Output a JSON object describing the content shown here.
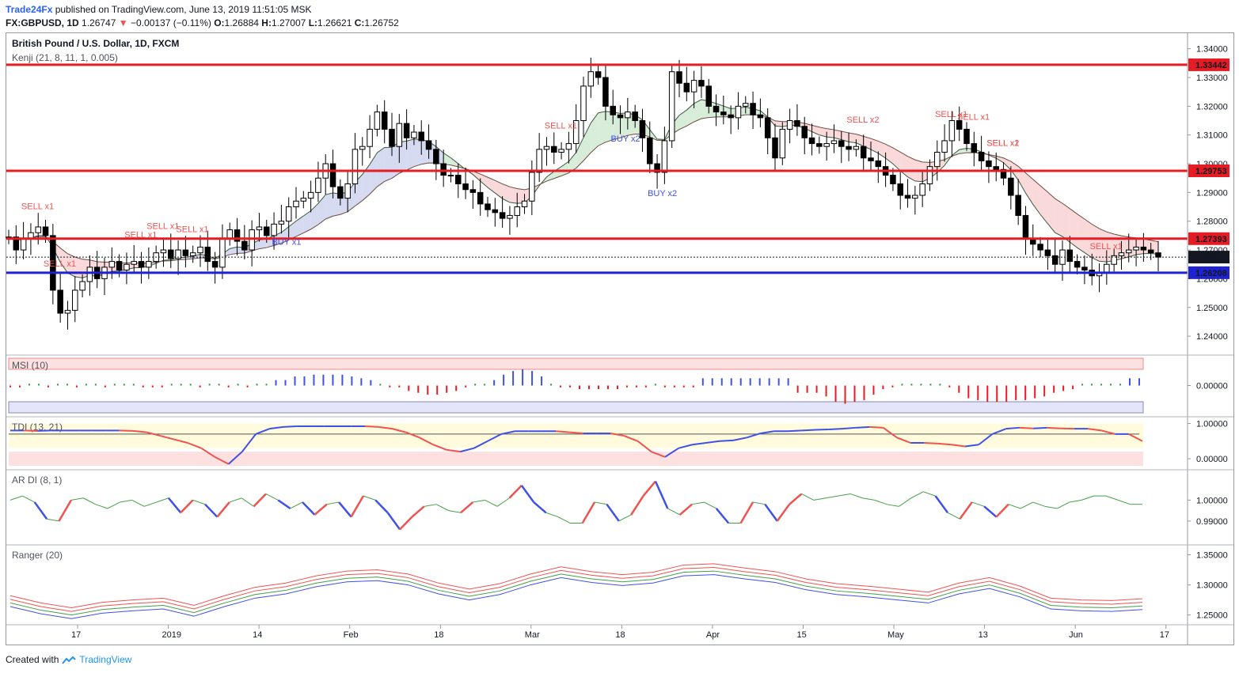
{
  "header": {
    "publisher": "Trade24Fx",
    "published_text": " published on TradingView.com, June 13, 2019 11:51:05 MSK"
  },
  "quote": {
    "symbol": "FX:GBPUSD, 1D",
    "last": "1.26747",
    "arrow": "▼",
    "change": "−0.00137 (−0.11%)",
    "o_label": "O:",
    "o": "1.26884",
    "h_label": "H:",
    "h": "1.27007",
    "l_label": "L:",
    "l": "1.26621",
    "c_label": "C:",
    "c": "1.26752"
  },
  "footer": {
    "created_with": "Created with",
    "brand": "TradingView"
  },
  "colors": {
    "up": "#ffffff",
    "down": "#000000",
    "red_line": "#e51c23",
    "blue_line": "#1e22d0",
    "sell": "#ef5350",
    "buy": "#3f51e8",
    "kenji_pos": "#c8e6c9",
    "kenji_neg": "#f7c9cb"
  },
  "chart_data": [
    {
      "type": "candlestick",
      "title": "British Pound / U.S. Dollar, 1D, FXCM",
      "indicator": "Kenji (21, 8, 11, 1, 0.005)",
      "ylim": [
        1.2337,
        1.3454
      ],
      "y_ticks": [
        "1.34000",
        "1.33000",
        "1.32000",
        "1.31000",
        "1.30000",
        "1.29000",
        "1.28000",
        "1.27000",
        "1.26000",
        "1.25000",
        "1.24000"
      ],
      "x_ticks": [
        "17",
        "2019",
        "14",
        "Feb",
        "18",
        "Mar",
        "18",
        "Apr",
        "15",
        "May",
        "13",
        "Jun",
        "17"
      ],
      "horizontal_levels": [
        {
          "value": 1.33442,
          "label": "1.33442",
          "color": "#e51c23"
        },
        {
          "value": 1.29753,
          "label": "1.29753",
          "color": "#e51c23"
        },
        {
          "value": 1.27393,
          "label": "1.27393",
          "color": "#e51c23"
        },
        {
          "value": 1.26208,
          "label": "1.26208",
          "color": "#1e22d0"
        }
      ],
      "last_price": {
        "value": 1.26752,
        "label": "1.26752"
      },
      "signals": [
        {
          "text": "SELL x1",
          "kind": "sell"
        },
        {
          "text": "SELL x1",
          "kind": "sell"
        },
        {
          "text": "SELL x1",
          "kind": "sell"
        },
        {
          "text": "SELL x1",
          "kind": "sell"
        },
        {
          "text": "SELL x1",
          "kind": "sell"
        },
        {
          "text": "BUY x1",
          "kind": "buy"
        },
        {
          "text": "SELL x1",
          "kind": "sell"
        },
        {
          "text": "BUY x2",
          "kind": "buy"
        },
        {
          "text": "BUY x2",
          "kind": "buy"
        },
        {
          "text": "SELL x2",
          "kind": "sell"
        },
        {
          "text": "SELL x1",
          "kind": "sell"
        },
        {
          "text": "SELL x1",
          "kind": "sell"
        },
        {
          "text": "SELL x2",
          "kind": "sell"
        },
        {
          "text": "SELL x1",
          "kind": "sell"
        },
        {
          "text": "SELL x1",
          "kind": "sell"
        }
      ],
      "close_series": [
        1.2745,
        1.27,
        1.274,
        1.276,
        1.278,
        1.275,
        1.256,
        1.248,
        1.249,
        1.256,
        1.259,
        1.264,
        1.26,
        1.264,
        1.266,
        1.263,
        1.265,
        1.266,
        1.264,
        1.266,
        1.269,
        1.27,
        1.267,
        1.27,
        1.268,
        1.269,
        1.271,
        1.266,
        1.264,
        1.274,
        1.277,
        1.273,
        1.27,
        1.277,
        1.278,
        1.275,
        1.279,
        1.28,
        1.285,
        1.287,
        1.288,
        1.29,
        1.295,
        1.3,
        1.292,
        1.288,
        1.293,
        1.305,
        1.306,
        1.312,
        1.318,
        1.312,
        1.306,
        1.314,
        1.309,
        1.311,
        1.308,
        1.305,
        1.3,
        1.296,
        1.296,
        1.293,
        1.291,
        1.29,
        1.286,
        1.284,
        1.283,
        1.281,
        1.282,
        1.285,
        1.287,
        1.297,
        1.305,
        1.306,
        1.304,
        1.305,
        1.307,
        1.315,
        1.327,
        1.332,
        1.33,
        1.32,
        1.317,
        1.316,
        1.318,
        1.315,
        1.309,
        1.3,
        1.297,
        1.308,
        1.332,
        1.328,
        1.325,
        1.329,
        1.327,
        1.32,
        1.318,
        1.317,
        1.316,
        1.32,
        1.321,
        1.317,
        1.316,
        1.309,
        1.302,
        1.312,
        1.315,
        1.313,
        1.309,
        1.307,
        1.306,
        1.307,
        1.308,
        1.306,
        1.305,
        1.306,
        1.302,
        1.301,
        1.299,
        1.296,
        1.293,
        1.289,
        1.288,
        1.289,
        1.293,
        1.299,
        1.304,
        1.308,
        1.315,
        1.312,
        1.307,
        1.304,
        1.301,
        1.299,
        1.298,
        1.295,
        1.289,
        1.282,
        1.274,
        1.272,
        1.27,
        1.268,
        1.265,
        1.27,
        1.266,
        1.264,
        1.263,
        1.261,
        1.262,
        1.265,
        1.268,
        1.269,
        1.27,
        1.271,
        1.27,
        1.269,
        1.2675
      ]
    },
    {
      "type": "bar",
      "title": "MSI (10)",
      "ylim": [
        -1.5,
        1.5
      ],
      "y_ticks": [
        "0.00000"
      ],
      "values": [
        -0.1,
        -0.1,
        0.1,
        0.1,
        -0.1,
        0.1,
        0.1,
        -0.1,
        0.1,
        0.1,
        -0.1,
        0.1,
        0.1,
        0.1,
        -0.1,
        -0.1,
        -0.1,
        0.1,
        0.1,
        0.1,
        -0.1,
        0.1,
        0.1,
        -0.1,
        0.1,
        -0.1,
        0.1,
        0.1,
        0.3,
        0.3,
        0.5,
        0.5,
        0.6,
        0.6,
        0.6,
        0.6,
        0.5,
        0.4,
        0.3,
        0.1,
        -0.1,
        -0.1,
        -0.3,
        -0.4,
        -0.5,
        -0.5,
        -0.4,
        -0.3,
        -0.1,
        0.1,
        0.1,
        0.3,
        0.6,
        0.8,
        0.9,
        0.8,
        0.5,
        0.1,
        -0.1,
        -0.1,
        -0.2,
        -0.2,
        -0.2,
        -0.2,
        -0.2,
        -0.1,
        -0.1,
        -0.1,
        0.1,
        -0.1,
        -0.1,
        -0.1,
        -0.1,
        0.4,
        0.4,
        0.4,
        0.4,
        0.4,
        0.4,
        0.4,
        0.4,
        0.4,
        0.4,
        -0.4,
        -0.4,
        -0.4,
        -0.6,
        -0.9,
        -1.0,
        -0.9,
        -0.8,
        -0.5,
        -0.2,
        -0.1,
        0.1,
        0.1,
        0.1,
        0.1,
        0.1,
        -0.1,
        -0.4,
        -0.7,
        -0.8,
        -0.9,
        -0.9,
        -0.9,
        -0.8,
        -0.8,
        -0.7,
        -0.6,
        -0.4,
        -0.3,
        -0.2,
        0.1,
        0.1,
        0.1,
        0.1,
        0.1,
        0.4,
        0.4
      ]
    },
    {
      "type": "line",
      "title": "TDI (13, 21)",
      "ylim": [
        -0.2,
        1.1
      ],
      "y_ticks": [
        "1.00000",
        "0.00000"
      ],
      "values": [
        0.8,
        0.8,
        0.79,
        0.8,
        0.8,
        0.8,
        0.8,
        0.8,
        0.8,
        0.79,
        0.75,
        0.65,
        0.55,
        0.45,
        0.3,
        0.05,
        -0.15,
        0.2,
        0.7,
        0.85,
        0.9,
        0.92,
        0.92,
        0.92,
        0.92,
        0.92,
        0.92,
        0.9,
        0.85,
        0.75,
        0.6,
        0.4,
        0.25,
        0.2,
        0.3,
        0.5,
        0.7,
        0.78,
        0.78,
        0.78,
        0.78,
        0.75,
        0.72,
        0.72,
        0.72,
        0.65,
        0.5,
        0.2,
        0.05,
        0.3,
        0.4,
        0.45,
        0.5,
        0.52,
        0.6,
        0.72,
        0.78,
        0.78,
        0.8,
        0.82,
        0.83,
        0.85,
        0.88,
        0.9,
        0.88,
        0.6,
        0.45,
        0.45,
        0.43,
        0.4,
        0.35,
        0.4,
        0.7,
        0.85,
        0.88,
        0.86,
        0.88,
        0.86,
        0.85,
        0.85,
        0.8,
        0.7,
        0.7,
        0.5
      ]
    },
    {
      "type": "line",
      "title": "AR DI (8, 1)",
      "ylim": [
        0.9805,
        1.013
      ],
      "y_ticks": [
        "1.00000",
        "0.99000"
      ],
      "values": [
        1.0,
        1.002,
        0.999,
        0.991,
        0.99,
        1.0,
        1.001,
        0.998,
        0.996,
        0.999,
        1.0,
        0.997,
        0.999,
        1.001,
        0.994,
        1.0,
        0.998,
        0.992,
        0.999,
        1.001,
        0.997,
        1.003,
        1.0,
        0.996,
        0.999,
        0.993,
        0.998,
        0.999,
        0.992,
        1.002,
        1.0,
        0.994,
        0.986,
        0.992,
        0.997,
        0.998,
        0.995,
        0.994,
        0.999,
        1.0,
        0.997,
        1.001,
        1.007,
        0.999,
        0.994,
        0.992,
        0.989,
        0.989,
        0.999,
        0.998,
        0.99,
        0.993,
        1.002,
        1.009,
        0.996,
        0.993,
        0.998,
        0.999,
        0.996,
        0.989,
        0.989,
        0.999,
        0.998,
        0.99,
        0.998,
        1.003,
        1.0,
        1.001,
        1.002,
        1.003,
        1.001,
        1.0,
        0.998,
        0.997,
        1.001,
        1.004,
        1.002,
        0.994,
        0.991,
        0.999,
        0.997,
        0.992,
        0.998,
        0.996,
        0.999,
        0.997,
        0.996,
        0.999,
        1.0,
        1.002,
        1.002,
        1.0,
        0.998,
        0.998
      ]
    },
    {
      "type": "line",
      "title": "Ranger (20)",
      "ylim": [
        1.2364,
        1.3638
      ],
      "y_ticks": [
        "1.35000",
        "1.30000",
        "1.25000"
      ],
      "series": [
        {
          "values": [
            1.282,
            1.27,
            1.262,
            1.271,
            1.275,
            1.278,
            1.266,
            1.282,
            1.296,
            1.303,
            1.315,
            1.323,
            1.325,
            1.318,
            1.303,
            1.293,
            1.302,
            1.318,
            1.33,
            1.322,
            1.317,
            1.321,
            1.333,
            1.335,
            1.328,
            1.322,
            1.31,
            1.302,
            1.298,
            1.293,
            1.288,
            1.303,
            1.312,
            1.298,
            1.278,
            1.275,
            1.274,
            1.277
          ]
        },
        {
          "values": [
            1.276,
            1.264,
            1.256,
            1.265,
            1.269,
            1.272,
            1.26,
            1.276,
            1.29,
            1.297,
            1.309,
            1.317,
            1.319,
            1.312,
            1.297,
            1.287,
            1.296,
            1.312,
            1.324,
            1.316,
            1.311,
            1.315,
            1.327,
            1.329,
            1.322,
            1.316,
            1.304,
            1.296,
            1.292,
            1.287,
            1.282,
            1.297,
            1.306,
            1.292,
            1.272,
            1.269,
            1.268,
            1.271
          ]
        },
        {
          "values": [
            1.27,
            1.258,
            1.25,
            1.259,
            1.263,
            1.266,
            1.254,
            1.27,
            1.284,
            1.291,
            1.303,
            1.311,
            1.313,
            1.306,
            1.291,
            1.281,
            1.29,
            1.306,
            1.318,
            1.31,
            1.305,
            1.309,
            1.321,
            1.323,
            1.316,
            1.31,
            1.298,
            1.29,
            1.286,
            1.281,
            1.276,
            1.291,
            1.3,
            1.286,
            1.266,
            1.263,
            1.262,
            1.265
          ]
        },
        {
          "values": [
            1.264,
            1.252,
            1.244,
            1.253,
            1.257,
            1.26,
            1.248,
            1.264,
            1.278,
            1.285,
            1.297,
            1.305,
            1.307,
            1.3,
            1.285,
            1.275,
            1.284,
            1.3,
            1.312,
            1.304,
            1.299,
            1.303,
            1.315,
            1.317,
            1.31,
            1.304,
            1.292,
            1.284,
            1.28,
            1.275,
            1.27,
            1.285,
            1.294,
            1.28,
            1.26,
            1.257,
            1.256,
            1.259
          ]
        }
      ]
    }
  ]
}
